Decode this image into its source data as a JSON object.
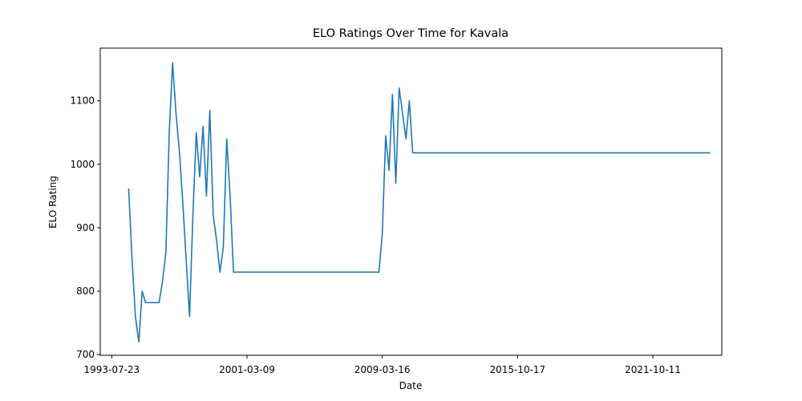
{
  "chart_data": {
    "type": "line",
    "title": "ELO Ratings Over Time for Kavala",
    "x_label": "Date",
    "y_label": "ELO Rating",
    "color": "#1f77b4",
    "categories": [
      "1993-07-23",
      null,
      null,
      null,
      null,
      null,
      null,
      null,
      null,
      null,
      null,
      null,
      null,
      null,
      null,
      null,
      null,
      null,
      null,
      null,
      null,
      null,
      null,
      null,
      null,
      null,
      null,
      null,
      null,
      null,
      null,
      null,
      null,
      null,
      null,
      null,
      null,
      null,
      null,
      null,
      "2001-03-09",
      null,
      null,
      null,
      null,
      null,
      null,
      null,
      null,
      null,
      null,
      null,
      null,
      null,
      null,
      null,
      null,
      null,
      null,
      null,
      null,
      null,
      null,
      null,
      null,
      null,
      null,
      null,
      null,
      null,
      null,
      null,
      null,
      null,
      null,
      null,
      null,
      null,
      null,
      null,
      "2009-03-16",
      null,
      null,
      null,
      null,
      null,
      null,
      null,
      null,
      null,
      null,
      null,
      null,
      null,
      null,
      null,
      null,
      null,
      null,
      null,
      null,
      null,
      null,
      null,
      null,
      null,
      null,
      null,
      null,
      null,
      null,
      null,
      null,
      null,
      null,
      null,
      null,
      null,
      null,
      null,
      "2015-10-17",
      null,
      null,
      null,
      null,
      null,
      null,
      null,
      null,
      null,
      null,
      null,
      null,
      null,
      null,
      null,
      null,
      null,
      null,
      null,
      null,
      null,
      null,
      null,
      null,
      null,
      null,
      null,
      null,
      null,
      null,
      null,
      null,
      null,
      null,
      null,
      null,
      null,
      null,
      null,
      "2021-10-11",
      null,
      null,
      null,
      null,
      null,
      null,
      null,
      null,
      null,
      null,
      null,
      null,
      null,
      null,
      null,
      null,
      null
    ],
    "values": [
      null,
      null,
      null,
      null,
      null,
      962,
      850,
      760,
      720,
      800,
      782,
      782,
      782,
      782,
      782,
      815,
      860,
      1050,
      1160,
      1080,
      1020,
      940,
      850,
      760,
      920,
      1050,
      980,
      1060,
      950,
      1085,
      920,
      880,
      830,
      870,
      1040,
      950,
      830,
      830,
      830,
      830,
      830,
      830,
      830,
      830,
      830,
      830,
      830,
      830,
      830,
      830,
      830,
      830,
      830,
      830,
      830,
      830,
      830,
      830,
      830,
      830,
      830,
      830,
      830,
      830,
      830,
      830,
      830,
      830,
      830,
      830,
      830,
      830,
      830,
      830,
      830,
      830,
      830,
      830,
      830,
      830,
      890,
      1045,
      990,
      1110,
      970,
      1120,
      1080,
      1040,
      1100,
      1018,
      1018,
      1018,
      1018,
      1018,
      1018,
      1018,
      1018,
      1018,
      1018,
      1018,
      1018,
      1018,
      1018,
      1018,
      1018,
      1018,
      1018,
      1018,
      1018,
      1018,
      1018,
      1018,
      1018,
      1018,
      1018,
      1018,
      1018,
      1018,
      1018,
      1018,
      1018,
      1018,
      1018,
      1018,
      1018,
      1018,
      1018,
      1018,
      1018,
      1018,
      1018,
      1018,
      1018,
      1018,
      1018,
      1018,
      1018,
      1018,
      1018,
      1018,
      1018,
      1018,
      1018,
      1018,
      1018,
      1018,
      1018,
      1018,
      1018,
      1018,
      1018,
      1018,
      1018,
      1018,
      1018,
      1018,
      1018,
      1018,
      1018,
      1018,
      1018,
      1018,
      1018,
      1018,
      1018,
      1018,
      1018,
      1018,
      1018,
      1018,
      1018,
      1018,
      1018,
      1018,
      1018,
      1018,
      1018,
      1018
    ],
    "ylim": [
      699,
      1183
    ],
    "yticks": [
      700,
      800,
      900,
      1000,
      1100
    ]
  }
}
